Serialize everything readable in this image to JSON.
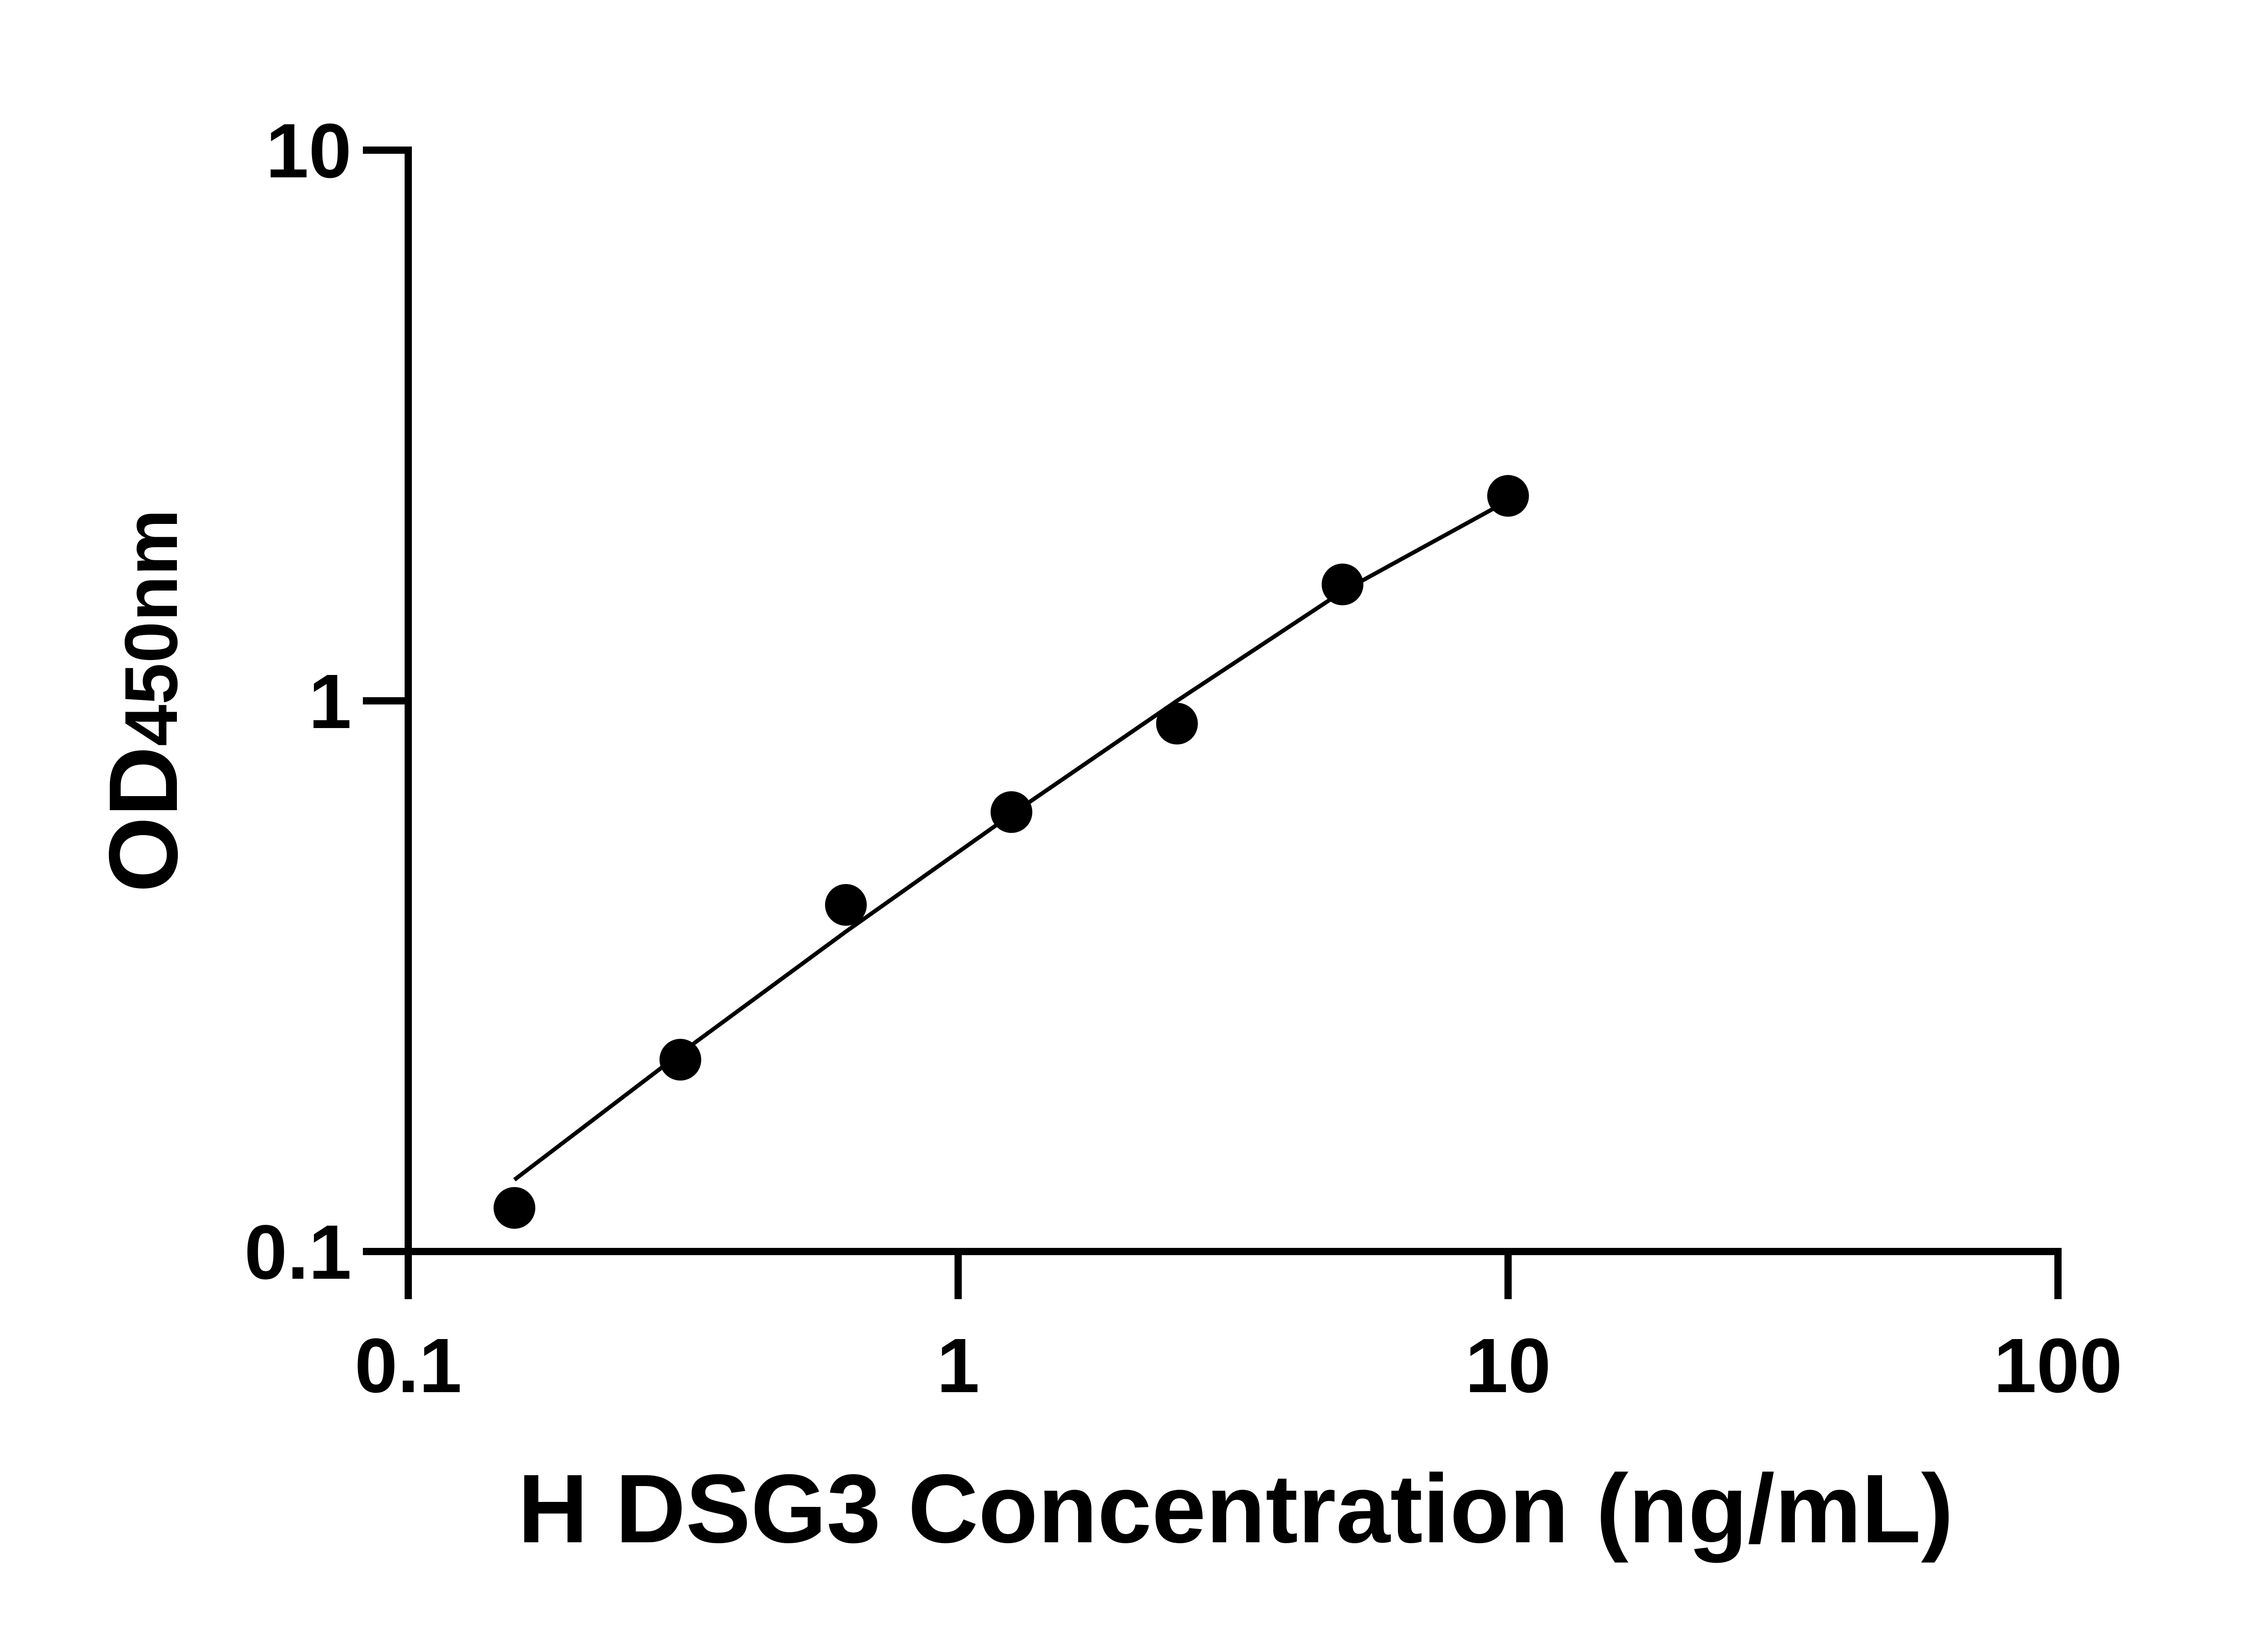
{
  "chart_data": {
    "type": "scatter",
    "x_label": "H DSG3 Concentration (ng/mL)",
    "y_label": {
      "main": "OD",
      "sub": "450nm"
    },
    "x": [
      0.156,
      0.3125,
      0.625,
      1.25,
      2.5,
      5,
      10
    ],
    "series": [
      {
        "color": "#000000",
        "values": [
          0.12,
          0.223,
          0.426,
          0.628,
          0.909,
          1.627,
          2.356
        ]
      }
    ],
    "fit": {
      "color": "#000000",
      "x": [
        0.156,
        0.3125,
        0.625,
        1.25,
        2.5,
        5,
        10
      ],
      "values": [
        0.135,
        0.229,
        0.381,
        0.622,
        1.0,
        1.58,
        2.31
      ]
    },
    "x_log": true,
    "y_log": true,
    "xlim": [
      0.1,
      100
    ],
    "ylim": [
      0.1,
      10
    ],
    "xticks": [
      0.1,
      1,
      10,
      100
    ],
    "yticks": [
      0.1,
      1,
      10
    ]
  }
}
